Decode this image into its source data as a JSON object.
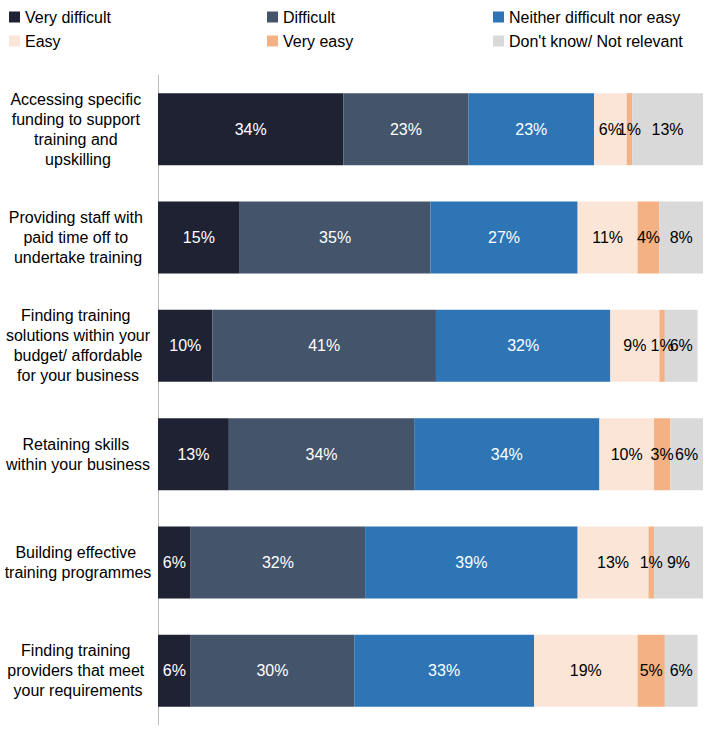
{
  "chart_data": {
    "type": "bar",
    "orientation": "horizontal",
    "stacked": true,
    "data_labels": true,
    "tick_labels": "y",
    "grid": false,
    "legend": "top",
    "xlim": [
      0,
      100
    ],
    "categories": [
      "Accessing specific funding to support training and upskilling",
      "Providing staff with paid time off to undertake training",
      "Finding training solutions within your budget/ affordable for your business",
      "Retaining skills within your business",
      "Building effective training programmes",
      "Finding training providers that meet your requirements"
    ],
    "series": [
      {
        "name": "Very difficult",
        "color": "#1f2232",
        "values": [
          34,
          15,
          10,
          13,
          6,
          6
        ],
        "value_labels": [
          "34%",
          "15%",
          "10%",
          "13%",
          "6%",
          "6%"
        ]
      },
      {
        "name": "Difficult",
        "color": "#44546a",
        "values": [
          23,
          35,
          41,
          34,
          32,
          30
        ],
        "value_labels": [
          "23%",
          "35%",
          "41%",
          "34%",
          "32%",
          "30%"
        ]
      },
      {
        "name": "Neither difficult nor easy",
        "color": "#2e75b6",
        "values": [
          23,
          27,
          32,
          34,
          39,
          33
        ],
        "value_labels": [
          "23%",
          "27%",
          "32%",
          "34%",
          "39%",
          "33%"
        ]
      },
      {
        "name": "Easy",
        "color": "#fbe5d6",
        "values": [
          6,
          11,
          9,
          10,
          13,
          19
        ],
        "value_labels": [
          "6%",
          "11%",
          "9%",
          "10%",
          "13%",
          "19%"
        ]
      },
      {
        "name": "Very easy",
        "color": "#f4b183",
        "values": [
          1,
          4,
          1,
          3,
          1,
          5
        ],
        "value_labels": [
          "1%",
          "4%",
          "1%",
          "3%",
          "1%",
          "5%"
        ]
      },
      {
        "name": "Don't know/ Not relevant",
        "color": "#d9d9d9",
        "values": [
          13,
          8,
          6,
          6,
          9,
          6
        ],
        "value_labels": [
          "13%",
          "8%",
          "6%",
          "6%",
          "9%",
          "6%"
        ]
      }
    ]
  }
}
